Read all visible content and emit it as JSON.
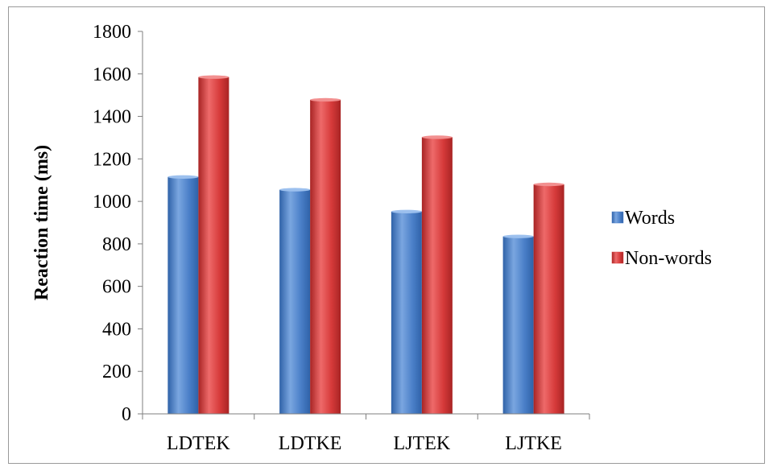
{
  "chart_data": {
    "type": "bar",
    "categories": [
      "LDTEK",
      "LDTKE",
      "LJTEK",
      "LJTKE"
    ],
    "series": [
      {
        "name": "Words",
        "values": [
          1115,
          1055,
          952,
          835
        ],
        "color": "#4a7fc8"
      },
      {
        "name": "Non-words",
        "values": [
          1585,
          1478,
          1302,
          1080
        ],
        "color": "#d63a3a"
      }
    ],
    "ylabel": "Reaction time (ms)",
    "xlabel": "",
    "title": "",
    "ylim": [
      0,
      1800
    ],
    "ytick_step": 200,
    "grid": false,
    "legend_position": "right"
  }
}
